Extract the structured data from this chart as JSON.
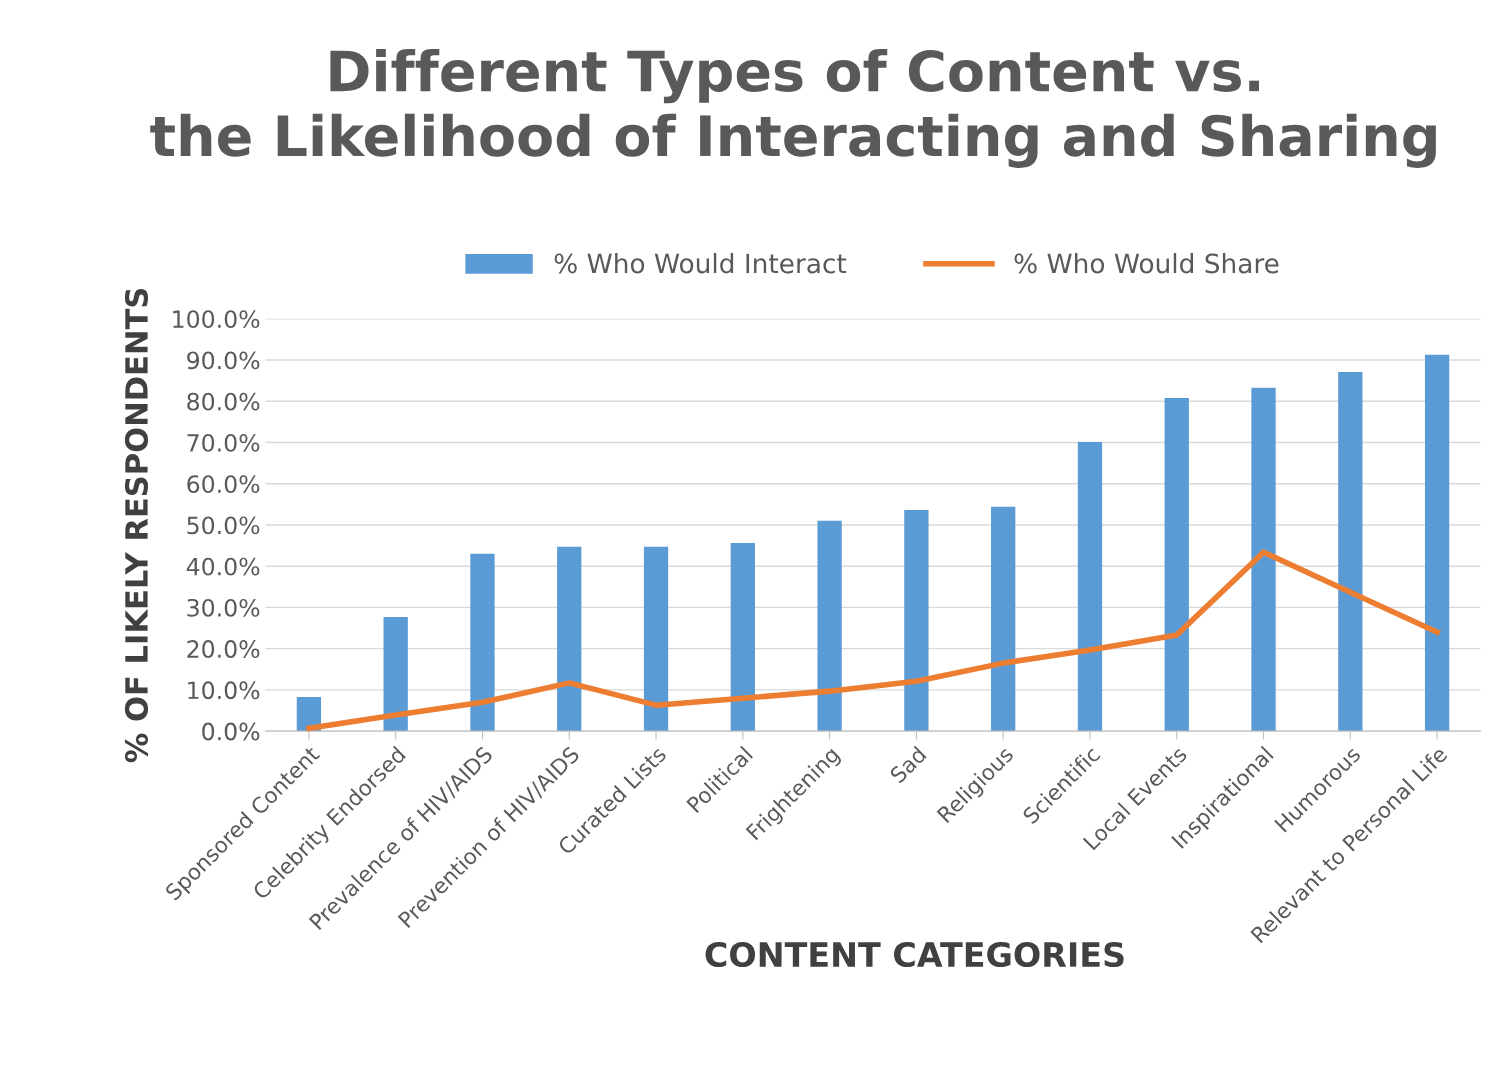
{
  "chart_data": {
    "type": "bar",
    "title": "Different Types of Content vs.\nthe Likelihood of Interacting and Sharing",
    "xlabel": "CONTENT CATEGORIES",
    "ylabel": "% OF LIKELY RESPONDENTS",
    "categories": [
      "Sponsored Content",
      "Celebrity Endorsed",
      "Prevalence of HIV/AIDS",
      "Prevention of HIV/AIDS",
      "Curated Lists",
      "Political",
      "Frightening",
      "Sad",
      "Religious",
      "Scientific",
      "Local Events",
      "Inspirational",
      "Humorous",
      "Relevant to Personal Life"
    ],
    "series": [
      {
        "name": "% Who Would Interact",
        "color": "#5b9bd5",
        "values": [
          8.3,
          27.7,
          43.0,
          44.7,
          44.7,
          45.6,
          51.0,
          53.6,
          54.4,
          70.1,
          80.8,
          83.3,
          87.1,
          91.3
        ]
      },
      {
        "name": "% Who Would Share",
        "type": "line",
        "color": "#ed7d31",
        "values": [
          0.7,
          3.9,
          7.0,
          11.7,
          6.3,
          8.0,
          9.7,
          12.1,
          16.5,
          19.7,
          23.3,
          43.4,
          33.7,
          24.0
        ]
      }
    ],
    "ylim": [
      0,
      100
    ],
    "yticks": [
      {
        "value": 0,
        "label": "0.0%"
      },
      {
        "value": 10,
        "label": "10.0%"
      },
      {
        "value": 20,
        "label": "20.0%"
      },
      {
        "value": 30,
        "label": "30.0%"
      },
      {
        "value": 40,
        "label": "40.0%"
      },
      {
        "value": 50,
        "label": "50.0%"
      },
      {
        "value": 60,
        "label": "60.0%"
      },
      {
        "value": 70,
        "label": "70.0%"
      },
      {
        "value": 80,
        "label": "80.0%"
      },
      {
        "value": 90,
        "label": "90.0%"
      },
      {
        "value": 100,
        "label": "100.0%"
      }
    ],
    "grid": "y",
    "legend": "top",
    "marker": "none",
    "line_style": "solid"
  }
}
